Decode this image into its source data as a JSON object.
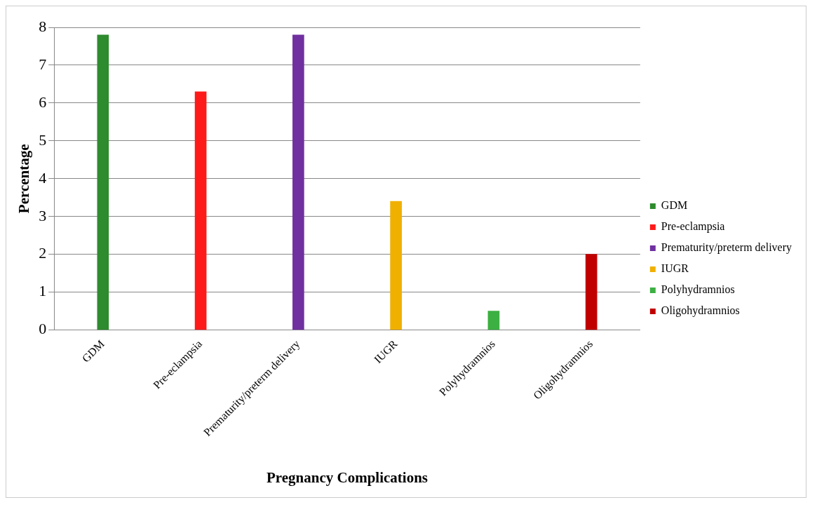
{
  "chart_data": {
    "type": "bar",
    "xlabel": "Pregnancy Complications",
    "ylabel": "Percentage",
    "categories": [
      "GDM",
      "Pre-eclampsia",
      "Prematurity/preterm delivery",
      "IUGR",
      "Polyhydramnios",
      "Oligohydramnios"
    ],
    "series": [
      {
        "name": "GDM",
        "color": "#2e8b2e",
        "values": [
          7.8,
          null,
          null,
          null,
          null,
          null
        ]
      },
      {
        "name": "Pre-eclampsia",
        "color": "#ff1a1a",
        "values": [
          null,
          6.3,
          null,
          null,
          null,
          null
        ]
      },
      {
        "name": "Prematurity/preterm delivery",
        "color": "#7030a0",
        "values": [
          null,
          null,
          7.8,
          null,
          null,
          null
        ]
      },
      {
        "name": "IUGR",
        "color": "#f0b000",
        "values": [
          null,
          null,
          null,
          3.4,
          null,
          null
        ]
      },
      {
        "name": "Polyhydramnios",
        "color": "#3cb043",
        "values": [
          null,
          null,
          null,
          null,
          0.5,
          null
        ]
      },
      {
        "name": "Oligohydramnios",
        "color": "#c00000",
        "values": [
          null,
          null,
          null,
          null,
          null,
          2.0
        ]
      }
    ],
    "ylim": [
      0,
      8
    ],
    "yticks": [
      0,
      1,
      2,
      3,
      4,
      5,
      6,
      7,
      8
    ],
    "grid": "y",
    "legend": "right"
  }
}
